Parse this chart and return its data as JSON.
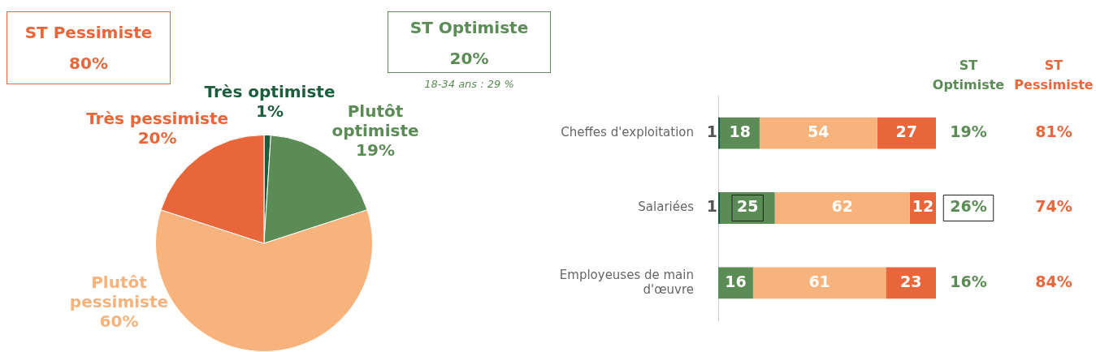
{
  "chart_data": [
    {
      "type": "pie",
      "categories": [
        "Très optimiste",
        "Plutôt optimiste",
        "Plutôt pessimiste",
        "Très pessimiste"
      ],
      "values": [
        1,
        19,
        60,
        20
      ],
      "colors": [
        "#1d5c3c",
        "#5b8c56",
        "#f8b27b",
        "#e9663b"
      ],
      "value_labels": [
        "1%",
        "19%",
        "60%",
        "20%"
      ],
      "annotations": [
        "ST Pessimiste",
        "80%",
        "ST Optimiste",
        "20%",
        "18-34 ans : 29 %"
      ]
    },
    {
      "type": "bar",
      "orientation": "horizontal",
      "stacked": true,
      "categories": [
        "Cheffes d'exploitation",
        "Salariées",
        "Employeuses de main d'œuvre"
      ],
      "series": [
        {
          "color": "#1d5c3c",
          "values": [
            1,
            1,
            null
          ]
        },
        {
          "color": "#5b8c56",
          "values": [
            18,
            25,
            16
          ]
        },
        {
          "color": "#f8b27b",
          "values": [
            54,
            62,
            61
          ]
        },
        {
          "color": "#e9663b",
          "values": [
            27,
            12,
            23
          ]
        }
      ],
      "xlim": [
        0,
        100
      ],
      "tick_labels": "y",
      "data_labels": true,
      "annotations": [
        "ST Optimiste",
        "ST Pessimiste",
        "19%",
        "26%",
        "16%",
        "81%",
        "74%",
        "84%"
      ]
    }
  ]
}
